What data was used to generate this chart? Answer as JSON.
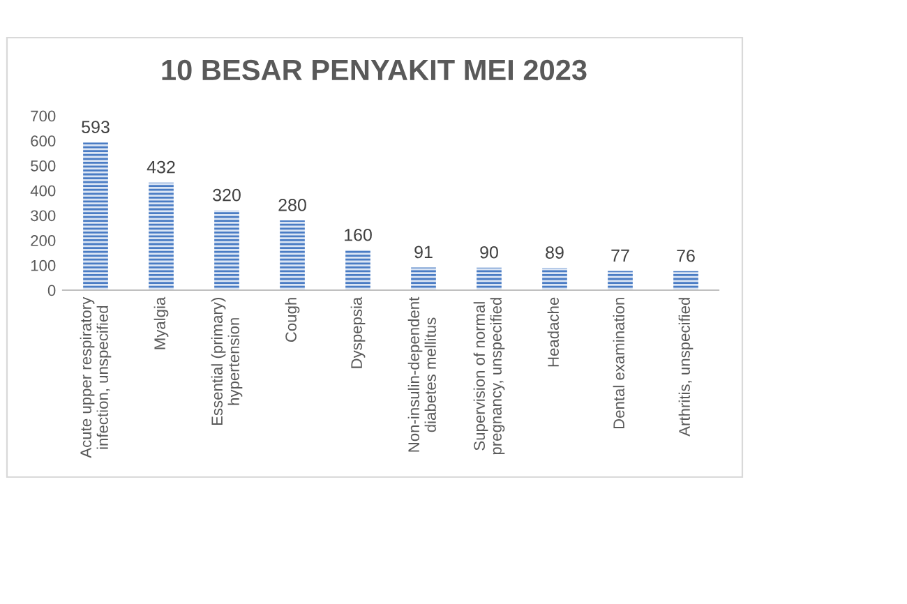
{
  "chart_data": {
    "type": "bar",
    "title": "10 BESAR PENYAKIT MEI 2023",
    "categories": [
      "Acute upper respiratory\ninfection, unspecified",
      "Myalgia",
      "Essential (primary)\nhypertension",
      "Cough",
      "Dyspepsia",
      "Non-insulin-dependent\ndiabetes mellitus",
      "Supervision of normal\npregnancy, unspecified",
      "Headache",
      "Dental examination",
      "Arthritis, unspecified"
    ],
    "values": [
      593,
      432,
      320,
      280,
      160,
      91,
      90,
      89,
      77,
      76
    ],
    "color": "#4a7cc4",
    "data_labels": true,
    "ylim": [
      0,
      700
    ],
    "yticks": [
      0,
      100,
      200,
      300,
      400,
      500,
      600,
      700
    ],
    "grid": false,
    "legend": false
  }
}
